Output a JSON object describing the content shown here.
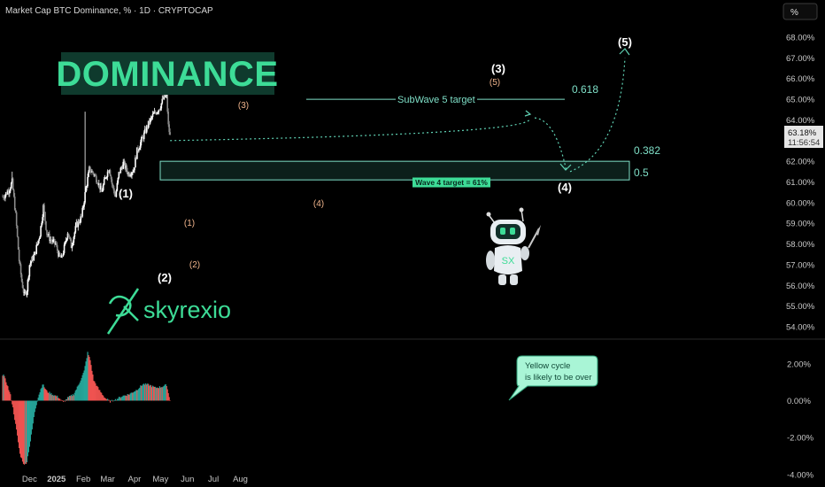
{
  "header": {
    "title": "Market Cap BTC Dominance, % · 1D · CRYPTOCAP",
    "scale_button": "%"
  },
  "banner": {
    "text": "DOMINANCE"
  },
  "brand": {
    "name": "skyrexio",
    "logo_text": "SX"
  },
  "price_badge": {
    "value": "63.18%",
    "countdown": "11:56:54"
  },
  "annotations": {
    "subwave_target": "SubWave 5 target",
    "fib_0618": "0.618",
    "fib_0382": "0.382",
    "fib_05": "0.5",
    "wave4_target": "Wave 4 target = 61%",
    "wave_labels": [
      "(1)",
      "(2)",
      "(3)",
      "(4)",
      "(5)"
    ],
    "sub_labels": [
      "(1)",
      "(2)",
      "(3)",
      "(4)",
      "(5)"
    ],
    "callout_line1": "Yellow cycle",
    "callout_line2": "is likely to be over"
  },
  "colors": {
    "background": "#000000",
    "bull": "#ffffff",
    "bear": "#8a8a8a",
    "accent": "#3ddc97",
    "zone": "#7fe0c8",
    "osc_green": "#26a69a",
    "osc_red": "#ef5350",
    "sub_label": "#f0b48c",
    "dotted": "#5fd1b3"
  },
  "chart_data": [
    {
      "type": "candlestick",
      "title": "Market Cap BTC Dominance, % · 1D · CRYPTOCAP",
      "y_unit": "%",
      "ylim": [
        53.7,
        68.6
      ],
      "y_ticks": [
        "68.00%",
        "67.00%",
        "66.00%",
        "65.00%",
        "64.00%",
        "63.00%",
        "62.00%",
        "61.00%",
        "60.00%",
        "59.00%",
        "58.00%",
        "57.00%",
        "56.00%",
        "55.00%",
        "54.00%"
      ],
      "x_ticks": [
        "Dec",
        "2025",
        "Feb",
        "Mar",
        "Apr",
        "May",
        "Jun",
        "Jul",
        "Aug"
      ],
      "anchors": [
        {
          "date": "2024-11-01",
          "value": 60.3
        },
        {
          "date": "2024-11-07",
          "value": 60.6
        },
        {
          "date": "2024-11-11",
          "value": 61.0
        },
        {
          "date": "2024-11-15",
          "value": 59.4
        },
        {
          "date": "2024-11-19",
          "value": 57.2
        },
        {
          "date": "2024-11-22",
          "value": 56.2
        },
        {
          "date": "2024-11-25",
          "value": 55.5
        },
        {
          "date": "2024-11-28",
          "value": 55.8
        },
        {
          "date": "2024-12-01",
          "value": 57.0
        },
        {
          "date": "2024-12-07",
          "value": 57.5
        },
        {
          "date": "2024-12-13",
          "value": 58.5
        },
        {
          "date": "2024-12-17",
          "value": 59.8
        },
        {
          "date": "2024-12-21",
          "value": 58.5
        },
        {
          "date": "2024-12-25",
          "value": 58.2
        },
        {
          "date": "2024-12-31",
          "value": 58.0
        },
        {
          "date": "2025-01-04",
          "value": 57.4
        },
        {
          "date": "2025-01-07",
          "value": 57.3
        },
        {
          "date": "2025-01-11",
          "value": 58.0
        },
        {
          "date": "2025-01-14",
          "value": 58.6
        },
        {
          "date": "2025-01-18",
          "value": 57.9
        },
        {
          "date": "2025-01-24",
          "value": 58.9
        },
        {
          "date": "2025-01-30",
          "value": 59.3
        },
        {
          "date": "2025-02-04",
          "value": 60.7
        },
        {
          "date": "2025-02-08",
          "value": 61.6
        },
        {
          "date": "2025-02-13",
          "value": 61.4
        },
        {
          "date": "2025-02-18",
          "value": 61.0
        },
        {
          "date": "2025-02-22",
          "value": 60.5
        },
        {
          "date": "2025-02-27",
          "value": 61.3
        },
        {
          "date": "2025-03-03",
          "value": 61.7
        },
        {
          "date": "2025-03-06",
          "value": 60.9
        },
        {
          "date": "2025-03-10",
          "value": 60.3
        },
        {
          "date": "2025-03-14",
          "value": 61.4
        },
        {
          "date": "2025-03-19",
          "value": 61.9
        },
        {
          "date": "2025-03-25",
          "value": 61.4
        },
        {
          "date": "2025-03-31",
          "value": 61.6
        },
        {
          "date": "2025-04-04",
          "value": 62.5
        },
        {
          "date": "2025-04-09",
          "value": 63.0
        },
        {
          "date": "2025-04-13",
          "value": 63.4
        },
        {
          "date": "2025-04-17",
          "value": 63.8
        },
        {
          "date": "2025-04-22",
          "value": 64.2
        },
        {
          "date": "2025-04-26",
          "value": 64.4
        },
        {
          "date": "2025-04-30",
          "value": 64.6
        },
        {
          "date": "2025-05-04",
          "value": 65.0
        },
        {
          "date": "2025-05-08",
          "value": 65.2
        },
        {
          "date": "2025-05-10",
          "value": 63.7
        },
        {
          "date": "2025-05-12",
          "value": 63.2
        }
      ],
      "levels": [
        {
          "name": "SubWave 5 target",
          "value": 65.0
        },
        {
          "name": "0.382",
          "value": 62.0
        },
        {
          "name": "0.5",
          "value": 61.1
        }
      ]
    },
    {
      "type": "bar",
      "title": "",
      "ylim": [
        -4.1,
        2.9
      ],
      "y_ticks": [
        "2.00%",
        "0.00%",
        "-2.00%",
        "-4.00%"
      ],
      "colors": {
        "positive": "#26a69a",
        "negative": "#ef5350"
      },
      "anchors": [
        {
          "date": "2024-11-01",
          "value": 1.4
        },
        {
          "date": "2024-11-05",
          "value": 0.9
        },
        {
          "date": "2024-11-09",
          "value": 0.3
        },
        {
          "date": "2024-11-12",
          "value": -0.4
        },
        {
          "date": "2024-11-16",
          "value": -1.6
        },
        {
          "date": "2024-11-20",
          "value": -2.9
        },
        {
          "date": "2024-11-25",
          "value": -3.5
        },
        {
          "date": "2024-11-28",
          "value": -3.3
        },
        {
          "date": "2024-12-02",
          "value": -2.2
        },
        {
          "date": "2024-12-07",
          "value": -0.6
        },
        {
          "date": "2024-12-11",
          "value": 0.2
        },
        {
          "date": "2024-12-16",
          "value": 0.9
        },
        {
          "date": "2024-12-21",
          "value": 0.5
        },
        {
          "date": "2024-12-27",
          "value": 0.35
        },
        {
          "date": "2025-01-03",
          "value": 0.2
        },
        {
          "date": "2025-01-09",
          "value": -0.1
        },
        {
          "date": "2025-01-14",
          "value": 0.15
        },
        {
          "date": "2025-01-21",
          "value": 0.35
        },
        {
          "date": "2025-01-27",
          "value": 0.9
        },
        {
          "date": "2025-02-02",
          "value": 1.6
        },
        {
          "date": "2025-02-06",
          "value": 2.6
        },
        {
          "date": "2025-02-09",
          "value": 2.2
        },
        {
          "date": "2025-02-13",
          "value": 1.1
        },
        {
          "date": "2025-02-19",
          "value": 0.6
        },
        {
          "date": "2025-02-26",
          "value": 0.15
        },
        {
          "date": "2025-03-04",
          "value": -0.05
        },
        {
          "date": "2025-03-10",
          "value": 0.05
        },
        {
          "date": "2025-03-18",
          "value": 0.25
        },
        {
          "date": "2025-03-26",
          "value": 0.35
        },
        {
          "date": "2025-04-04",
          "value": 0.6
        },
        {
          "date": "2025-04-11",
          "value": 0.9
        },
        {
          "date": "2025-04-18",
          "value": 0.85
        },
        {
          "date": "2025-04-25",
          "value": 0.7
        },
        {
          "date": "2025-05-02",
          "value": 0.75
        },
        {
          "date": "2025-05-08",
          "value": 0.85
        },
        {
          "date": "2025-05-10",
          "value": 0.4
        },
        {
          "date": "2025-05-12",
          "value": 0.05
        }
      ]
    }
  ]
}
